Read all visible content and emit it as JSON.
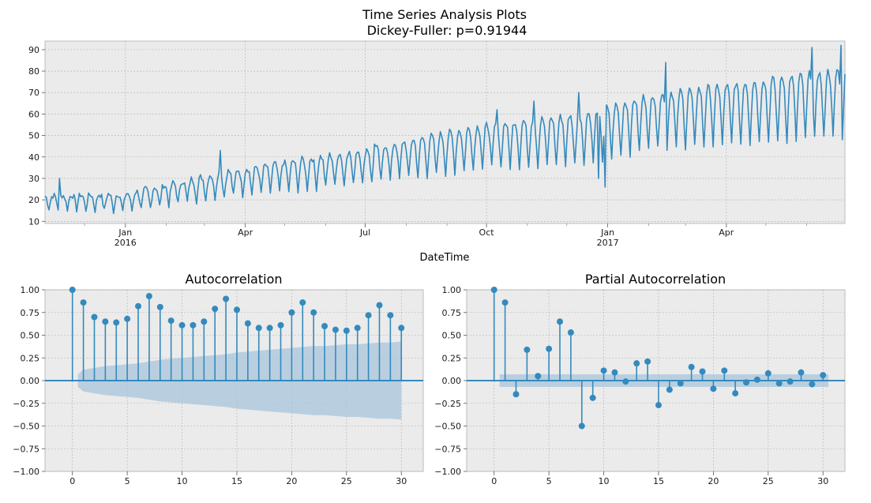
{
  "chart_data": [
    {
      "type": "line",
      "title_line1": "Time Series Analysis Plots",
      "title_line2": "Dickey-Fuller: p=0.91944",
      "xlabel": "DateTime",
      "ylabel": "",
      "x_start": "2015-11-01",
      "x_end": "2017-06-30",
      "ylim": [
        9,
        94
      ],
      "yticks": [
        10,
        20,
        30,
        40,
        50,
        60,
        70,
        80,
        90
      ],
      "xticks": [
        {
          "date": "2016-01-01",
          "label": "Jan",
          "label2": "2016"
        },
        {
          "date": "2016-04-01",
          "label": "Apr",
          "label2": ""
        },
        {
          "date": "2016-07-01",
          "label": "Jul",
          "label2": ""
        },
        {
          "date": "2016-10-01",
          "label": "Oct",
          "label2": ""
        },
        {
          "date": "2017-01-01",
          "label": "Jan",
          "label2": "2017"
        },
        {
          "date": "2017-04-01",
          "label": "Apr",
          "label2": ""
        }
      ],
      "grid": true,
      "series_color": "#348ABD",
      "trend_points": [
        {
          "date": "2015-11-01",
          "value": 20
        },
        {
          "date": "2016-01-01",
          "value": 20
        },
        {
          "date": "2016-03-15",
          "value": 29
        },
        {
          "date": "2016-07-01",
          "value": 38
        },
        {
          "date": "2016-10-01",
          "value": 48
        },
        {
          "date": "2016-12-15",
          "value": 52
        },
        {
          "date": "2017-02-01",
          "value": 60
        },
        {
          "date": "2017-04-01",
          "value": 64
        },
        {
          "date": "2017-06-30",
          "value": 70
        }
      ],
      "weekly_amplitude": {
        "start": 4,
        "end": 22
      },
      "spikes": [
        {
          "date": "2015-11-12",
          "value": 30
        },
        {
          "date": "2016-03-13",
          "value": 43
        },
        {
          "date": "2016-07-08",
          "value": 46
        },
        {
          "date": "2016-10-09",
          "value": 62
        },
        {
          "date": "2016-11-06",
          "value": 66
        },
        {
          "date": "2016-12-10",
          "value": 70
        },
        {
          "date": "2016-12-25",
          "value": 30
        },
        {
          "date": "2016-12-30",
          "value": 26
        },
        {
          "date": "2017-02-14",
          "value": 84
        },
        {
          "date": "2017-06-05",
          "value": 91
        },
        {
          "date": "2017-06-27",
          "value": 92
        }
      ]
    },
    {
      "type": "stem",
      "title": "Autocorrelation",
      "xlim": [
        -2.5,
        32
      ],
      "ylim": [
        -1.0,
        1.0
      ],
      "xticks": [
        0,
        5,
        10,
        15,
        20,
        25,
        30
      ],
      "yticks": [
        -1.0,
        -0.75,
        -0.5,
        -0.25,
        0.0,
        0.25,
        0.5,
        0.75,
        1.0
      ],
      "ytick_labels": [
        "−1.00",
        "−0.75",
        "−0.50",
        "−0.25",
        "0.00",
        "0.25",
        "0.50",
        "0.75",
        "1.00"
      ],
      "xtick_labels": [
        "0",
        "5",
        "10",
        "15",
        "20",
        "25",
        "30"
      ],
      "lags": [
        0,
        1,
        2,
        3,
        4,
        5,
        6,
        7,
        8,
        9,
        10,
        11,
        12,
        13,
        14,
        15,
        16,
        17,
        18,
        19,
        20,
        21,
        22,
        23,
        24,
        25,
        26,
        27,
        28,
        29,
        30
      ],
      "values": [
        1.0,
        0.86,
        0.7,
        0.65,
        0.64,
        0.68,
        0.82,
        0.93,
        0.81,
        0.66,
        0.61,
        0.61,
        0.65,
        0.79,
        0.9,
        0.78,
        0.63,
        0.58,
        0.58,
        0.61,
        0.75,
        0.86,
        0.75,
        0.6,
        0.56,
        0.55,
        0.58,
        0.72,
        0.83,
        0.72,
        0.58
      ],
      "conf_band": [
        0.07,
        0.12,
        0.14,
        0.16,
        0.17,
        0.18,
        0.19,
        0.21,
        0.23,
        0.24,
        0.25,
        0.26,
        0.27,
        0.28,
        0.29,
        0.31,
        0.32,
        0.33,
        0.34,
        0.35,
        0.36,
        0.37,
        0.38,
        0.38,
        0.39,
        0.4,
        0.4,
        0.41,
        0.42,
        0.42,
        0.43
      ],
      "color": "#348ABD",
      "band_color": "#a8c6dc"
    },
    {
      "type": "stem",
      "title": "Partial Autocorrelation",
      "xlim": [
        -2.5,
        32
      ],
      "ylim": [
        -1.0,
        1.0
      ],
      "xticks": [
        0,
        5,
        10,
        15,
        20,
        25,
        30
      ],
      "yticks": [
        -1.0,
        -0.75,
        -0.5,
        -0.25,
        0.0,
        0.25,
        0.5,
        0.75,
        1.0
      ],
      "ytick_labels": [
        "−1.00",
        "−0.75",
        "−0.50",
        "−0.25",
        "0.00",
        "0.25",
        "0.50",
        "0.75",
        "1.00"
      ],
      "xtick_labels": [
        "0",
        "5",
        "10",
        "15",
        "20",
        "25",
        "30"
      ],
      "lags": [
        0,
        1,
        2,
        3,
        4,
        5,
        6,
        7,
        8,
        9,
        10,
        11,
        12,
        13,
        14,
        15,
        16,
        17,
        18,
        19,
        20,
        21,
        22,
        23,
        24,
        25,
        26,
        27,
        28,
        29,
        30
      ],
      "values": [
        1.0,
        0.86,
        -0.15,
        0.34,
        0.05,
        0.35,
        0.65,
        0.53,
        -0.5,
        -0.19,
        0.11,
        0.09,
        -0.01,
        0.19,
        0.21,
        -0.27,
        -0.1,
        -0.03,
        0.15,
        0.1,
        -0.09,
        0.11,
        -0.14,
        -0.02,
        0.01,
        0.08,
        -0.03,
        -0.01,
        0.09,
        -0.04,
        0.06
      ],
      "conf_band_value": 0.07,
      "color": "#348ABD",
      "band_color": "#a8c6dc"
    }
  ]
}
